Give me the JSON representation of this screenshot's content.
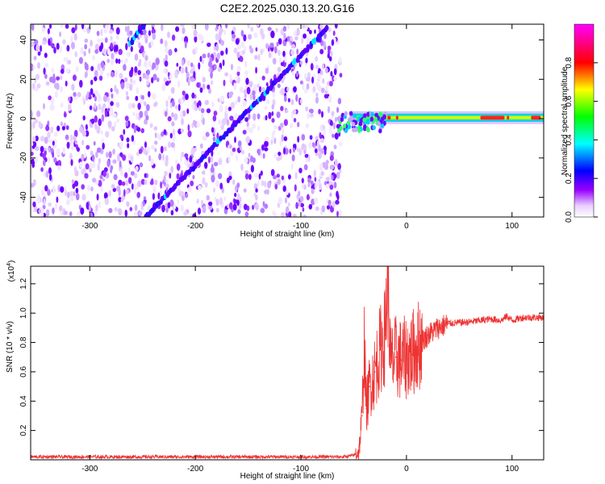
{
  "figure": {
    "title": "C2E2.2025.030.13.20.G16"
  },
  "chart_data": [
    {
      "type": "heatmap",
      "title": "C2E2.2025.030.13.20.G16",
      "xlabel": "Height of straight line (km)",
      "ylabel": "Frequency (Hz)",
      "xlim": [
        -356,
        130
      ],
      "ylim": [
        -50,
        48
      ],
      "x_ticks": [
        -300,
        -200,
        -100,
        0,
        100
      ],
      "y_ticks": [
        -40,
        -20,
        0,
        20,
        40
      ],
      "noise_region_x": [
        -356,
        -62
      ],
      "features": [
        {
          "name": "diagonal-trace",
          "from": {
            "x": -247,
            "y": -50
          },
          "to": {
            "x": -75,
            "y": 46
          }
        },
        {
          "name": "diagonal-trace-upper",
          "from": {
            "x": -262,
            "y": 38
          },
          "to": {
            "x": -248,
            "y": 48
          }
        },
        {
          "name": "carrier-band",
          "from": {
            "x": -62,
            "y": -7
          },
          "to": {
            "x": 130,
            "y": 1
          }
        }
      ],
      "colorbar": {
        "label": "Normalized spectral amplitude",
        "range": [
          0,
          1
        ],
        "ticks": [
          "0.0",
          "0.2",
          "0.4",
          "0.6",
          "0.8"
        ],
        "colors": [
          "#ffffff",
          "#9900ff",
          "#0000ff",
          "#00ffff",
          "#00ff00",
          "#ffff00",
          "#ff0000",
          "#ff00ff"
        ]
      },
      "grid": false
    },
    {
      "type": "line",
      "xlabel": "Height of straight line (km)",
      "ylabel": "SNR (10 * v/v)",
      "y_scale_label": "(x10",
      "y_scale_exp": "4",
      "y_scale_close": ")",
      "xlim": [
        -356,
        130
      ],
      "ylim": [
        0,
        1.32
      ],
      "x_ticks": [
        -300,
        -200,
        -100,
        0,
        100
      ],
      "y_ticks": [
        "0.2",
        "0.4",
        "0.6",
        "0.8",
        "1.0",
        "1.2"
      ],
      "series": [
        {
          "color": "#ee3333",
          "x": [
            -356,
            -300,
            -200,
            -100,
            -60,
            -50,
            -45,
            -42,
            -40,
            -38,
            -35,
            -30,
            -25,
            -20,
            -18,
            -15,
            -10,
            -5,
            0,
            5,
            10,
            20,
            30,
            40,
            60,
            80,
            90,
            95,
            100,
            110,
            120,
            130
          ],
          "y": [
            0.02,
            0.02,
            0.02,
            0.02,
            0.02,
            0.03,
            0.06,
            0.3,
            0.8,
            0.35,
            0.5,
            0.6,
            0.75,
            0.85,
            1.32,
            0.65,
            0.7,
            0.68,
            0.7,
            0.72,
            0.77,
            0.85,
            0.9,
            0.93,
            0.94,
            0.96,
            0.95,
            0.98,
            0.95,
            0.97,
            0.97,
            0.97
          ]
        }
      ],
      "grid": false
    }
  ]
}
